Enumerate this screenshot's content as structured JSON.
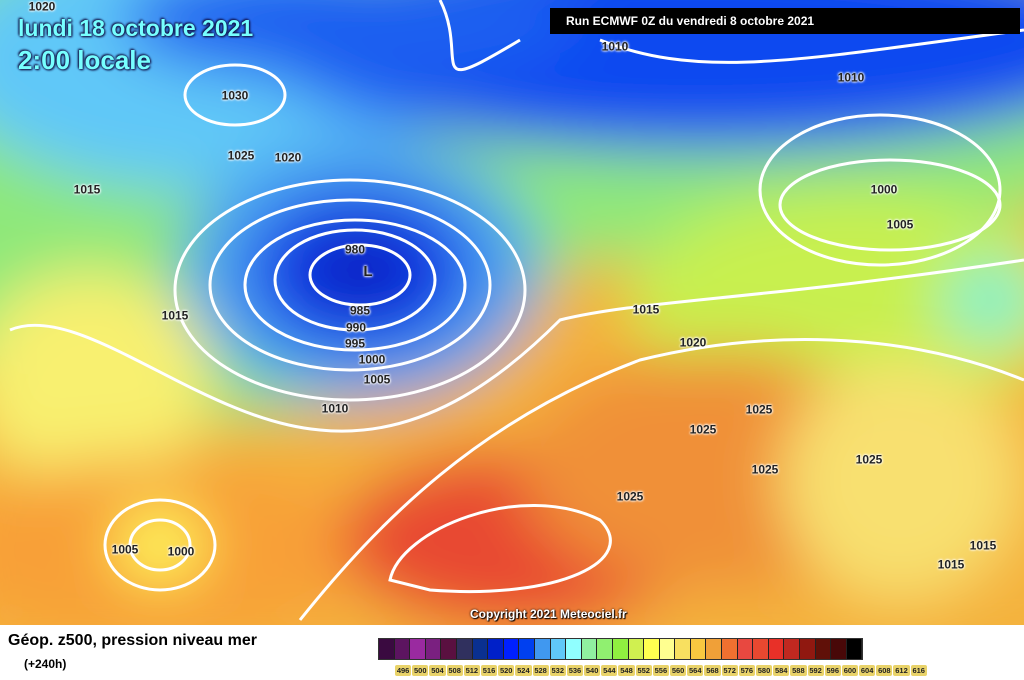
{
  "header": {
    "date": "lundi 18 octobre 2021",
    "time": "2:00 locale",
    "run": "Run ECMWF 0Z du vendredi 8 octobre 2021"
  },
  "copyright": "Copyright 2021 Meteociel.fr",
  "footer": {
    "caption": "Géop. z500, pression niveau mer",
    "lead": "(+240h)"
  },
  "low_marker": "L",
  "isobar_labels": [
    "1020",
    "1010",
    "1010",
    "1030",
    "1025",
    "1020",
    "1015",
    "1000",
    "1005",
    "980",
    "1015",
    "985",
    "990",
    "995",
    "1000",
    "1005",
    "1010",
    "1015",
    "1020",
    "1025",
    "1025",
    "1025",
    "1025",
    "1025",
    "1005",
    "1000",
    "1015",
    "1015"
  ],
  "scale": {
    "labels": [
      "496",
      "500",
      "504",
      "508",
      "512",
      "516",
      "520",
      "524",
      "528",
      "532",
      "536",
      "540",
      "544",
      "548",
      "552",
      "556",
      "560",
      "564",
      "568",
      "572",
      "576",
      "580",
      "584",
      "588",
      "592",
      "596",
      "600",
      "604",
      "608",
      "612",
      "616"
    ],
    "colors": [
      "#3a0a40",
      "#5c1460",
      "#9a2aa0",
      "#7a2080",
      "#5a1040",
      "#30305e",
      "#0a3090",
      "#0020c8",
      "#0020ff",
      "#0040f0",
      "#4098f0",
      "#60c8f8",
      "#90ffff",
      "#90f0a0",
      "#90f070",
      "#90f040",
      "#d0f050",
      "#ffff50",
      "#ffff90",
      "#f8e060",
      "#f8c840",
      "#f0a038",
      "#f07030",
      "#e84840",
      "#e84830",
      "#e83028",
      "#c02820",
      "#901810",
      "#601008",
      "#480808",
      "#000000"
    ]
  }
}
